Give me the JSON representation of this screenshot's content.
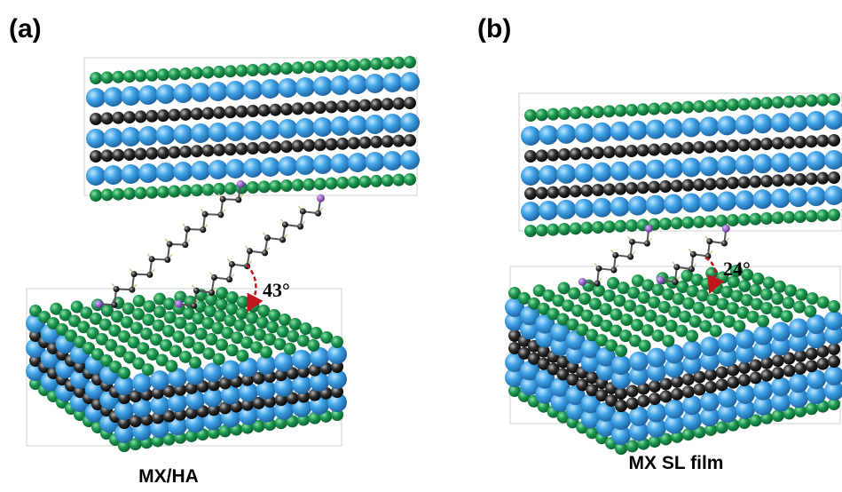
{
  "panels": [
    {
      "label": "(a)",
      "angle": "43°",
      "caption": "MX/HA"
    },
    {
      "label": "(b)",
      "angle": "24°",
      "caption": "MX SL film"
    }
  ]
}
